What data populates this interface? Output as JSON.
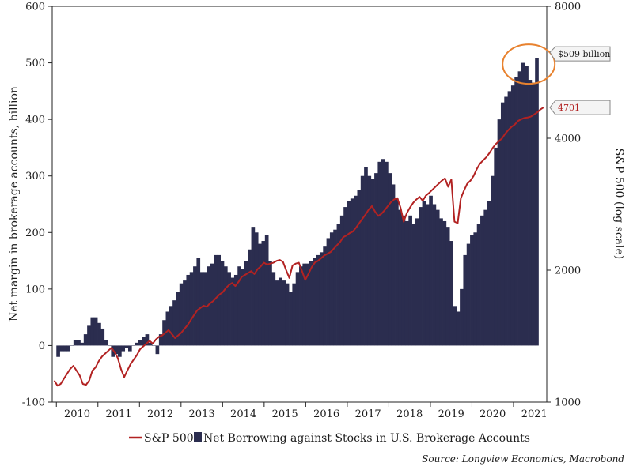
{
  "chart_data": {
    "type": "bar+line",
    "title": "",
    "xlabel": "",
    "ylabel_left": "Net margin in brokerage accounts, billion",
    "ylabel_right": "S&P 500 (log scale)",
    "ylim_left": [
      -100,
      600
    ],
    "ylim_right": [
      1000,
      8000
    ],
    "right_axis_scale": "log",
    "grid": false,
    "legend_position": "bottom",
    "left_ticks": [
      "600",
      "500",
      "400",
      "300",
      "200",
      "100",
      "0",
      "-100"
    ],
    "left_tick_values": [
      600,
      500,
      400,
      300,
      200,
      100,
      0,
      -100
    ],
    "right_ticks": [
      "8000",
      "4000",
      "2000",
      "1000"
    ],
    "right_tick_values": [
      8000,
      4000,
      2000,
      1000
    ],
    "x_ticks": [
      "2010",
      "2011",
      "2012",
      "2013",
      "2014",
      "2015",
      "2016",
      "2017",
      "2018",
      "2019",
      "2020",
      "2021"
    ],
    "x_start": 2009.9,
    "x_end": 2021.8,
    "series": [
      {
        "name": "Net Borrowing against Stocks in U.S. Brokerage Accounts",
        "kind": "bar",
        "color": "#2b2d4f",
        "start_year": 2010,
        "values": [
          -20,
          -10,
          -10,
          -10,
          0,
          10,
          10,
          5,
          20,
          35,
          50,
          50,
          40,
          30,
          10,
          0,
          -20,
          -15,
          -20,
          -10,
          -5,
          -10,
          0,
          5,
          10,
          15,
          20,
          5,
          0,
          -15,
          20,
          45,
          60,
          70,
          80,
          95,
          110,
          115,
          125,
          130,
          140,
          155,
          130,
          130,
          140,
          145,
          160,
          160,
          150,
          140,
          130,
          120,
          125,
          140,
          135,
          150,
          170,
          210,
          200,
          180,
          185,
          195,
          150,
          130,
          115,
          120,
          115,
          110,
          95,
          110,
          130,
          140,
          145,
          145,
          150,
          155,
          160,
          165,
          175,
          190,
          200,
          205,
          215,
          230,
          245,
          255,
          260,
          265,
          275,
          300,
          315,
          300,
          295,
          305,
          325,
          330,
          325,
          305,
          285,
          260,
          240,
          230,
          220,
          230,
          215,
          225,
          245,
          255,
          250,
          265,
          250,
          240,
          225,
          220,
          210,
          185,
          70,
          60,
          100,
          160,
          180,
          195,
          200,
          215,
          230,
          240,
          255,
          300,
          350,
          400,
          430,
          440,
          450,
          460,
          475,
          485,
          500,
          495,
          470,
          465,
          509
        ],
        "end_label": "$509 billion"
      },
      {
        "name": "S&P 500",
        "kind": "line",
        "color": "#b22222",
        "start_year": 2010,
        "values": [
          1120,
          1090,
          1100,
          1130,
          1160,
          1190,
          1210,
          1180,
          1150,
          1100,
          1095,
          1120,
          1180,
          1200,
          1240,
          1270,
          1290,
          1310,
          1330,
          1300,
          1260,
          1190,
          1140,
          1180,
          1220,
          1250,
          1280,
          1320,
          1340,
          1360,
          1380,
          1360,
          1390,
          1410,
          1420,
          1440,
          1460,
          1430,
          1400,
          1420,
          1440,
          1470,
          1500,
          1540,
          1580,
          1620,
          1640,
          1660,
          1650,
          1680,
          1700,
          1730,
          1760,
          1780,
          1820,
          1850,
          1870,
          1840,
          1880,
          1930,
          1950,
          1970,
          1990,
          1960,
          2010,
          2040,
          2080,
          2060,
          2070,
          2080,
          2100,
          2110,
          2090,
          2000,
          1920,
          2050,
          2070,
          2080,
          1990,
          1900,
          1960,
          2030,
          2080,
          2100,
          2130,
          2160,
          2180,
          2200,
          2240,
          2280,
          2320,
          2380,
          2400,
          2430,
          2450,
          2500,
          2560,
          2620,
          2680,
          2750,
          2800,
          2720,
          2660,
          2690,
          2740,
          2800,
          2860,
          2900,
          2920,
          2780,
          2580,
          2700,
          2780,
          2850,
          2900,
          2940,
          2880,
          2960,
          3000,
          3050,
          3100,
          3150,
          3200,
          3240,
          3100,
          3220,
          2580,
          2560,
          2920,
          3040,
          3150,
          3200,
          3280,
          3400,
          3500,
          3560,
          3620,
          3700,
          3800,
          3880,
          3940,
          4000,
          4100,
          4180,
          4250,
          4300,
          4380,
          4420,
          4450,
          4460,
          4480,
          4530,
          4580,
          4650,
          4701
        ],
        "end_label": "4701"
      }
    ],
    "annotations": [
      "$509 billion",
      "4701"
    ],
    "source": "Source: Longview Economics, Macrobond"
  }
}
